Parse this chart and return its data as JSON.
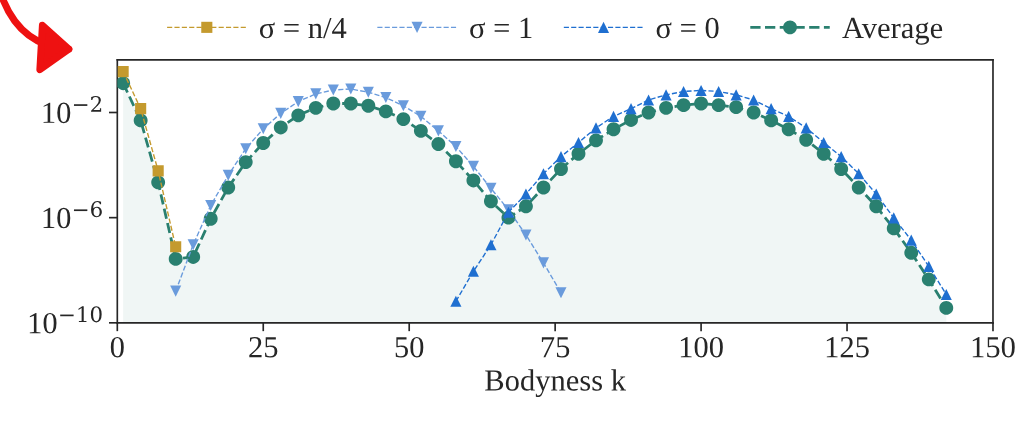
{
  "chart_data": {
    "type": "line",
    "xlabel": "Bodyness k",
    "xlim": [
      0,
      150
    ],
    "xticks": [
      0,
      25,
      50,
      75,
      100,
      125,
      150
    ],
    "ylim": [
      1e-10,
      1
    ],
    "log": "y",
    "yticks": [
      {
        "value": 0.01,
        "label": "10$^{−2}$"
      },
      {
        "value": 1e-06,
        "label": "10$^{−6}$"
      },
      {
        "value": 1e-10,
        "label": "10$^{−10}$"
      }
    ],
    "grid": false,
    "legend": "top",
    "series": [
      {
        "name": "σ = n/4",
        "color": "#c49a2e",
        "marker": "square",
        "line_style": "dashed",
        "x": [
          1,
          4,
          7,
          10
        ],
        "values": [
          0.36,
          0.014,
          6e-05,
          7.8e-08
        ]
      },
      {
        "name": "σ = 1",
        "color": "#6a9bdc",
        "marker": "triangle_down",
        "line_style": "dashed",
        "x": [
          10,
          13,
          16,
          19,
          22,
          25,
          28,
          31,
          34,
          37,
          40,
          43,
          46,
          49,
          52,
          55,
          58,
          61,
          64,
          67,
          70,
          73,
          76
        ],
        "values": [
          1.6e-09,
          9.3e-08,
          2.9e-06,
          4.1e-05,
          0.00042,
          0.0024,
          0.0093,
          0.026,
          0.051,
          0.072,
          0.078,
          0.059,
          0.037,
          0.018,
          0.0071,
          0.002,
          0.00051,
          8.9e-05,
          1.3e-05,
          2e-06,
          2.2e-07,
          1.9e-08,
          1.4e-09
        ]
      },
      {
        "name": "σ = 0",
        "color": "#1f6fd0",
        "marker": "triangle",
        "line_style": "dashed",
        "x": [
          58,
          61,
          64,
          67,
          70,
          73,
          76,
          79,
          82,
          85,
          88,
          91,
          94,
          97,
          100,
          103,
          106,
          109,
          112,
          115,
          118,
          121,
          124,
          127,
          130,
          133,
          136,
          139,
          142
        ],
        "values": [
          6.6e-10,
          9.1e-09,
          9.3e-08,
          1.6e-06,
          7.9e-06,
          4.7e-05,
          0.00021,
          0.00072,
          0.0026,
          0.0071,
          0.014,
          0.03,
          0.047,
          0.063,
          0.069,
          0.063,
          0.047,
          0.03,
          0.014,
          0.0071,
          0.0026,
          0.00072,
          0.00021,
          4.7e-05,
          7.9e-06,
          9.8e-07,
          1.4e-07,
          1.4e-08,
          1.2e-09
        ]
      },
      {
        "name": "Average",
        "type": "area",
        "color": "#2a8070",
        "marker": "circle",
        "line_style": "dashed",
        "x": [
          1,
          4,
          7,
          10,
          13,
          16,
          19,
          22,
          25,
          28,
          31,
          34,
          37,
          40,
          43,
          46,
          49,
          52,
          55,
          58,
          61,
          64,
          67,
          70,
          73,
          76,
          79,
          82,
          85,
          88,
          91,
          94,
          97,
          100,
          103,
          106,
          109,
          112,
          115,
          118,
          121,
          124,
          127,
          130,
          133,
          136,
          139,
          142
        ],
        "values": [
          0.13,
          0.005,
          2.2e-05,
          2.7e-08,
          3.2e-08,
          9.1e-07,
          1.4e-05,
          0.00013,
          0.00069,
          0.0027,
          0.0078,
          0.015,
          0.022,
          0.022,
          0.018,
          0.011,
          0.0056,
          0.002,
          0.00063,
          0.00014,
          2.6e-05,
          4.2e-06,
          1e-06,
          2.7e-06,
          1.4e-05,
          7.1e-05,
          0.00027,
          0.00087,
          0.0023,
          0.0052,
          0.01,
          0.015,
          0.019,
          0.022,
          0.019,
          0.016,
          0.01,
          0.005,
          0.0023,
          0.00091,
          0.00027,
          7.1e-05,
          1.4e-05,
          2.7e-06,
          3.9e-07,
          4.6e-08,
          4.5e-09,
          3.7e-10
        ]
      }
    ]
  }
}
